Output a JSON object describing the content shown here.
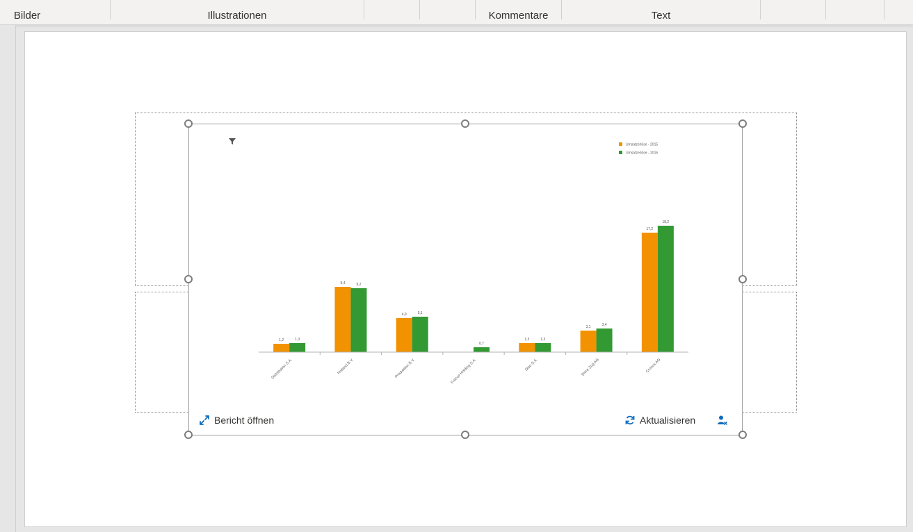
{
  "ribbon": {
    "groups": [
      "Bilder",
      "Illustrationen",
      "Kommentare",
      "Text"
    ]
  },
  "addin": {
    "open_report_label": "Bericht öffnen",
    "refresh_label": "Aktualisieren",
    "icons": {
      "filter": "filter-icon",
      "open": "expand-arrows-icon",
      "refresh": "refresh-icon",
      "user": "user-remove-icon"
    }
  },
  "colors": {
    "accent": "#0f6cbd",
    "series_2015": "#f39200",
    "series_2016": "#339933"
  },
  "chart_data": {
    "type": "bar",
    "categories": [
      "Distribution S.A.",
      "Holland B.V.",
      "Produktion B.V.",
      "France Holding S.A.",
      "Diso S.A.",
      "Store Zug AG",
      "Cronos AG"
    ],
    "series": [
      {
        "name": "Umsatzerlöse - 2015",
        "values": [
          1.2,
          9.4,
          4.9,
          null,
          1.3,
          3.1,
          17.2
        ],
        "labels": [
          "1,2",
          "9,4",
          "4,9",
          "",
          "1,3",
          "3,1",
          "17,2"
        ],
        "color": "#f39200"
      },
      {
        "name": "Umsatzerlöse - 2016",
        "values": [
          1.3,
          9.2,
          5.1,
          0.7,
          1.3,
          3.4,
          18.2
        ],
        "labels": [
          "1,3",
          "9,2",
          "5,1",
          "0,7",
          "1,3",
          "3,4",
          "18,2"
        ],
        "color": "#339933"
      }
    ],
    "ylim": [
      0,
      18.2
    ],
    "legend": "top-right",
    "grid": false
  }
}
